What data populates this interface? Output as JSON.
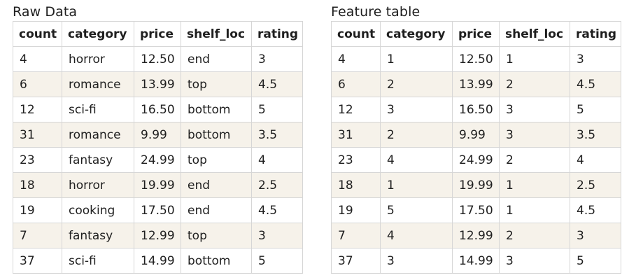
{
  "raw": {
    "title": "Raw Data",
    "columns": [
      "count",
      "category",
      "price",
      "shelf_loc",
      "rating"
    ],
    "rows": [
      [
        "4",
        "horror",
        "12.50",
        "end",
        "3"
      ],
      [
        "6",
        "romance",
        "13.99",
        "top",
        "4.5"
      ],
      [
        "12",
        "sci-fi",
        "16.50",
        "bottom",
        "5"
      ],
      [
        "31",
        "romance",
        "9.99",
        "bottom",
        "3.5"
      ],
      [
        "23",
        "fantasy",
        "24.99",
        "top",
        "4"
      ],
      [
        "18",
        "horror",
        "19.99",
        "end",
        "2.5"
      ],
      [
        "19",
        "cooking",
        "17.50",
        "end",
        "4.5"
      ],
      [
        "7",
        "fantasy",
        "12.99",
        "top",
        "3"
      ],
      [
        "37",
        "sci-fi",
        "14.99",
        "bottom",
        "5"
      ]
    ]
  },
  "feature": {
    "title": "Feature table",
    "columns": [
      "count",
      "category",
      "price",
      "shelf_loc",
      "rating"
    ],
    "rows": [
      [
        "4",
        "1",
        "12.50",
        "1",
        "3"
      ],
      [
        "6",
        "2",
        "13.99",
        "2",
        "4.5"
      ],
      [
        "12",
        "3",
        "16.50",
        "3",
        "5"
      ],
      [
        "31",
        "2",
        "9.99",
        "3",
        "3.5"
      ],
      [
        "23",
        "4",
        "24.99",
        "2",
        "4"
      ],
      [
        "18",
        "1",
        "19.99",
        "1",
        "2.5"
      ],
      [
        "19",
        "5",
        "17.50",
        "1",
        "4.5"
      ],
      [
        "7",
        "4",
        "12.99",
        "2",
        "3"
      ],
      [
        "37",
        "3",
        "14.99",
        "3",
        "5"
      ]
    ]
  },
  "colors": {
    "stripe": "#f6f2ea",
    "border": "#d6d6d6",
    "text": "#1f1f1f"
  }
}
